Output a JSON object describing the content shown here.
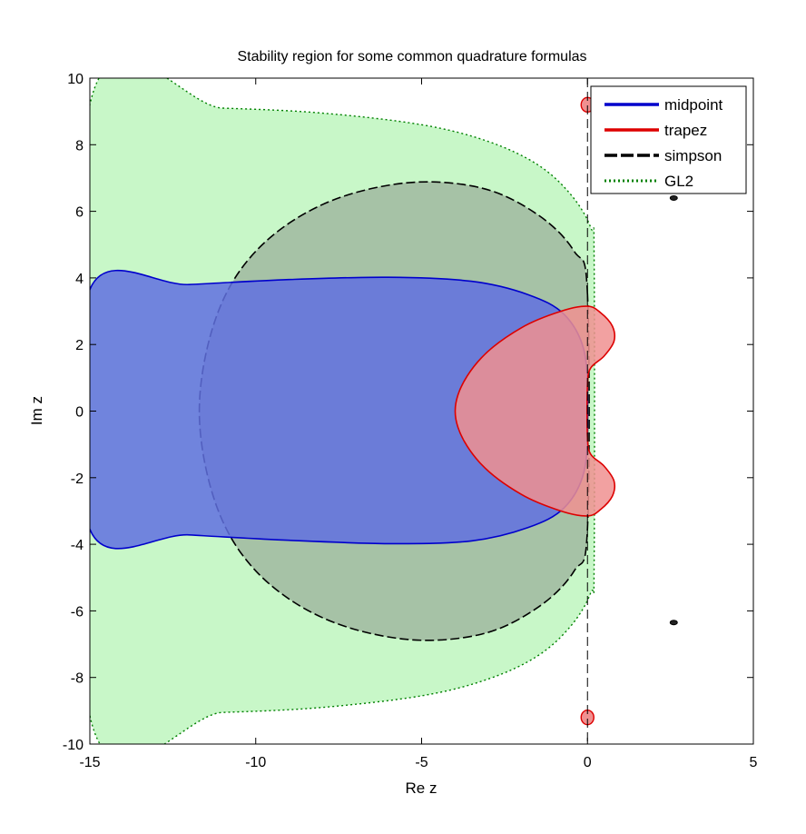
{
  "chart_data": {
    "type": "area",
    "title": "Stability region for some common quadrature formulas",
    "xlabel": "Re z",
    "ylabel": "Im z",
    "xlim": [
      -15,
      5
    ],
    "ylim": [
      -10,
      10
    ],
    "xticks": [
      "-15",
      "-10",
      "-5",
      "0",
      "5"
    ],
    "yticks": [
      "-10",
      "-8",
      "-6",
      "-4",
      "-2",
      "0",
      "2",
      "4",
      "6",
      "8",
      "10"
    ],
    "legend_position": "top-right",
    "grid": false,
    "series": [
      {
        "name": "GL2",
        "line_style": "dotted",
        "line_color": "#008000",
        "fill_color": "#c8f7c8",
        "points": [
          [
            0.2,
            4.5
          ],
          [
            0.1,
            5.5
          ],
          [
            -0.5,
            6.5
          ],
          [
            -1.5,
            7.4
          ],
          [
            -3,
            8.1
          ],
          [
            -5,
            8.6
          ],
          [
            -8,
            8.95
          ],
          [
            -11,
            9.1
          ],
          [
            -15,
            9.2
          ],
          [
            -15,
            -9.15
          ],
          [
            -11,
            -9.05
          ],
          [
            -8,
            -8.9
          ],
          [
            -5,
            -8.55
          ],
          [
            -3,
            -8.05
          ],
          [
            -1.5,
            -7.35
          ],
          [
            -0.5,
            -6.45
          ],
          [
            0.1,
            -5.45
          ],
          [
            0.2,
            -4.5
          ]
        ]
      },
      {
        "name": "simpson",
        "line_style": "dashed",
        "line_color": "#000000",
        "fill_color": "#a0b8a0",
        "points": [
          [
            0,
            3.5
          ],
          [
            -0.4,
            4.8
          ],
          [
            -1.5,
            5.9
          ],
          [
            -3.2,
            6.7
          ],
          [
            -5.5,
            6.85
          ],
          [
            -8,
            6.2
          ],
          [
            -10,
            4.8
          ],
          [
            -11.2,
            2.8
          ],
          [
            -11.7,
            0
          ],
          [
            -11.2,
            -2.8
          ],
          [
            -10,
            -4.8
          ],
          [
            -8,
            -6.2
          ],
          [
            -5.5,
            -6.85
          ],
          [
            -3.2,
            -6.7
          ],
          [
            -1.5,
            -5.9
          ],
          [
            -0.4,
            -4.8
          ],
          [
            0,
            -3.5
          ]
        ]
      },
      {
        "name": "midpoint",
        "line_style": "solid",
        "line_color": "#0000cc",
        "fill_color": "#6070e0",
        "points": [
          [
            -15,
            3.65
          ],
          [
            -12,
            3.8
          ],
          [
            -9,
            3.95
          ],
          [
            -6,
            4.02
          ],
          [
            -3.5,
            3.9
          ],
          [
            -1.8,
            3.5
          ],
          [
            -0.7,
            2.9
          ],
          [
            -0.1,
            1.8
          ],
          [
            0,
            0
          ],
          [
            -0.1,
            -1.8
          ],
          [
            -0.7,
            -2.9
          ],
          [
            -1.8,
            -3.5
          ],
          [
            -3.5,
            -3.9
          ],
          [
            -6,
            -3.98
          ],
          [
            -9,
            -3.88
          ],
          [
            -12,
            -3.72
          ],
          [
            -15,
            -3.55
          ]
        ]
      },
      {
        "name": "trapez",
        "line_style": "solid",
        "line_color": "#dd0000",
        "fill_color": "#f09090",
        "points": [
          [
            0,
            0.8
          ],
          [
            0.1,
            1.3
          ],
          [
            0.5,
            1.65
          ],
          [
            0.8,
            2.1
          ],
          [
            0.75,
            2.55
          ],
          [
            0.4,
            2.95
          ],
          [
            0,
            3.15
          ],
          [
            -0.8,
            3.0
          ],
          [
            -2.0,
            2.5
          ],
          [
            -3.2,
            1.6
          ],
          [
            -3.9,
            0.5
          ],
          [
            -3.9,
            -0.5
          ],
          [
            -3.2,
            -1.6
          ],
          [
            -2.0,
            -2.5
          ],
          [
            -0.8,
            -3.0
          ],
          [
            0,
            -3.15
          ],
          [
            0.4,
            -2.95
          ],
          [
            0.75,
            -2.55
          ],
          [
            0.8,
            -2.1
          ],
          [
            0.5,
            -1.65
          ],
          [
            0.1,
            -1.3
          ],
          [
            0,
            -0.8
          ]
        ]
      }
    ],
    "islands": [
      {
        "series": "trapez",
        "x": 0,
        "y": 9.2
      },
      {
        "series": "trapez",
        "x": 0,
        "y": -9.2
      },
      {
        "series": "simpson",
        "x": 2.6,
        "y": 6.4
      },
      {
        "series": "simpson",
        "x": 2.6,
        "y": -6.35
      }
    ],
    "reference_line": {
      "x": 0,
      "style": "dashed",
      "color": "#000000"
    }
  }
}
